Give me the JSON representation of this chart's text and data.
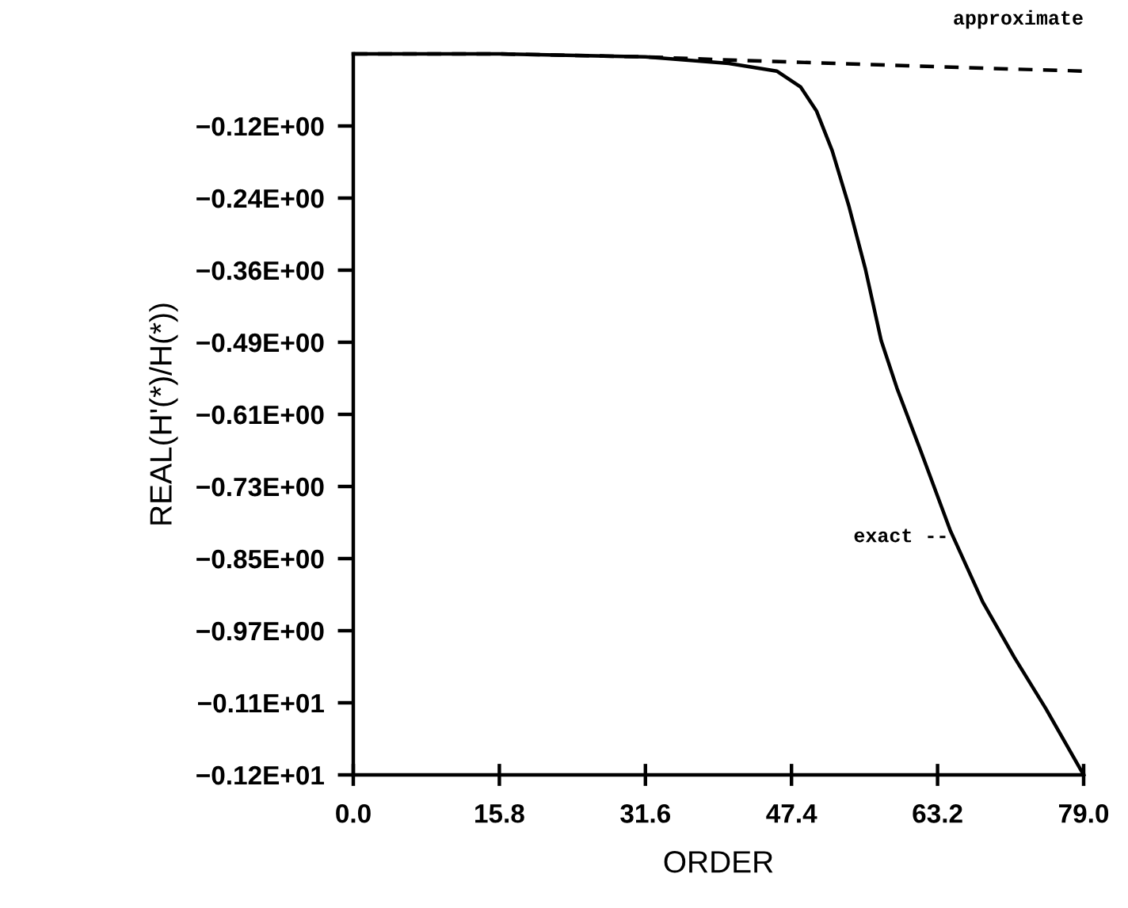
{
  "chart_data": {
    "type": "line",
    "xlabel": "ORDER",
    "ylabel": "REAL(H'(*)/H(*))",
    "xlim": [
      0,
      79
    ],
    "xticks": [
      {
        "value": 0,
        "label": "0.0"
      },
      15.8,
      31.6,
      47.4,
      63.2,
      {
        "value": 79,
        "label": "79.0"
      }
    ],
    "ylim": [
      -1.215,
      0
    ],
    "yticks": [
      {
        "value": -0.1215,
        "label": "−0.12E+00"
      },
      {
        "value": -0.243,
        "label": "−0.24E+00"
      },
      {
        "value": -0.3645,
        "label": "−0.36E+00"
      },
      {
        "value": -0.486,
        "label": "−0.49E+00"
      },
      {
        "value": -0.6075,
        "label": "−0.61E+00"
      },
      {
        "value": -0.729,
        "label": "−0.73E+00"
      },
      {
        "value": -0.8505,
        "label": "−0.85E+00"
      },
      {
        "value": -0.972,
        "label": "−0.97E+00"
      },
      {
        "value": -1.0935,
        "label": "−0.11E+01"
      },
      {
        "value": -1.215,
        "label": "−0.12E+01"
      }
    ],
    "grid": false,
    "marker": "none",
    "series": [
      {
        "name": "approximate",
        "color": "#000000",
        "line_style": "dashed",
        "x": [
          0,
          15.8,
          31.6,
          40,
          50,
          60,
          70,
          79
        ],
        "values": [
          0,
          0,
          -0.005,
          -0.01,
          -0.015,
          -0.02,
          -0.025,
          -0.029
        ]
      },
      {
        "name": "exact --",
        "color": "#000000",
        "line_style": "solid",
        "x": [
          0,
          15.8,
          31.6,
          40.6,
          45.8,
          48.4,
          50.1,
          51.8,
          53.6,
          55.4,
          57.1,
          58.8,
          61.4,
          64.6,
          68.1,
          71.5,
          74.9,
          79
        ],
        "values": [
          0,
          0,
          -0.005,
          -0.016,
          -0.029,
          -0.056,
          -0.096,
          -0.163,
          -0.256,
          -0.363,
          -0.483,
          -0.563,
          -0.67,
          -0.804,
          -0.924,
          -1.017,
          -1.103,
          -1.215
        ]
      }
    ]
  }
}
